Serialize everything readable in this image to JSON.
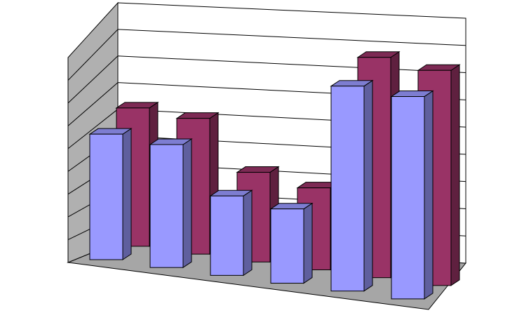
{
  "chart_data": {
    "type": "bar",
    "style": "3d-clustered",
    "categories": [
      "",
      "",
      "",
      "",
      "",
      ""
    ],
    "series": [
      {
        "values": [
          4.9,
          4.8,
          3.1,
          2.9,
          8.0,
          7.9
        ],
        "color": "#9999ff"
      },
      {
        "values": [
          5.4,
          5.3,
          3.5,
          3.2,
          8.6,
          8.4
        ],
        "color": "#993366"
      }
    ],
    "ylim": [
      0,
      9
    ],
    "grid": true,
    "legend": "none",
    "walls": {
      "back": "#ffffff",
      "side": "#b0b0b0",
      "floor": "#a6a6a6"
    }
  }
}
